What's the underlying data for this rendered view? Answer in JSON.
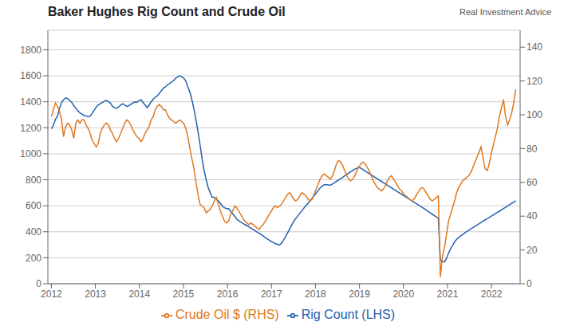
{
  "chart_data": {
    "type": "line",
    "title": "Baker Hughes Rig Count and Crude Oil",
    "annotations": [
      "Real Investment Advice"
    ],
    "grid": true,
    "legend": "bottom",
    "xlim": [
      2011.92,
      2022.65
    ],
    "xticks": [
      2012,
      2013,
      2014,
      2015,
      2016,
      2017,
      2018,
      2019,
      2020,
      2021,
      2022
    ],
    "ylim": [
      0,
      1950
    ],
    "yticks": [
      0,
      200,
      400,
      600,
      800,
      1000,
      1200,
      1400,
      1600,
      1800
    ],
    "y2lim": [
      0,
      150
    ],
    "y2ticks": [
      0,
      20,
      40,
      60,
      80,
      100,
      120,
      140
    ],
    "x": [
      2012,
      2012.0463,
      2012.0925,
      2012.1388,
      2012.1851,
      2012.2314,
      2012.2776,
      2012.3239,
      2012.3702,
      2012.4164,
      2012.4627,
      2012.509,
      2012.5553,
      2012.6015,
      2012.6478,
      2012.6941,
      2012.7404,
      2012.7866,
      2012.8329,
      2012.8792,
      2012.9254,
      2012.9717,
      2013.018,
      2013.0643,
      2013.1105,
      2013.1568,
      2013.2031,
      2013.2493,
      2013.2956,
      2013.3419,
      2013.3882,
      2013.4344,
      2013.4807,
      2013.527,
      2013.5732,
      2013.6195,
      2013.6658,
      2013.7121,
      2013.7583,
      2013.8046,
      2013.8509,
      2013.8971,
      2013.9434,
      2013.9897,
      2014.036,
      2014.0822,
      2014.1285,
      2014.1748,
      2014.2211,
      2014.2673,
      2014.3136,
      2014.3599,
      2014.4061,
      2014.4524,
      2014.4987,
      2014.545,
      2014.5912,
      2014.6375,
      2014.6838,
      2014.73,
      2014.7763,
      2014.8226,
      2014.8689,
      2014.9151,
      2014.9614,
      2015.0077,
      2015.0539,
      2015.1002,
      2015.1465,
      2015.1928,
      2015.239,
      2015.2853,
      2015.3316,
      2015.3779,
      2015.4241,
      2015.4704,
      2015.5167,
      2015.5629,
      2015.6092,
      2015.6555,
      2015.7018,
      2015.748,
      2015.7943,
      2015.8406,
      2015.8868,
      2015.9331,
      2015.9794,
      2016.0257,
      2016.0719,
      2016.1182,
      2016.1645,
      2016.2107,
      2016.257,
      2016.3033,
      2016.3496,
      2016.3958,
      2016.4421,
      2016.4884,
      2016.5346,
      2016.5809,
      2016.6272,
      2016.6735,
      2016.7197,
      2016.766,
      2016.8123,
      2016.8586,
      2016.9048,
      2016.9511,
      2016.9974,
      2017.0436,
      2017.0899,
      2017.1362,
      2017.1825,
      2017.2287,
      2017.275,
      2017.3213,
      2017.3675,
      2017.4138,
      2017.4601,
      2017.5064,
      2017.5526,
      2017.5989,
      2017.6452,
      2017.6914,
      2017.7377,
      2017.784,
      2017.8303,
      2017.8765,
      2017.9228,
      2017.9691,
      2018.0154,
      2018.0616,
      2018.1079,
      2018.1542,
      2018.2004,
      2018.2467,
      2018.293,
      2018.3393,
      2018.3855,
      2018.4318,
      2018.4781,
      2018.5243,
      2018.5706,
      2018.6169,
      2018.6632,
      2018.7094,
      2018.7557,
      2018.802,
      2018.8482,
      2018.8945,
      2018.9408,
      2018.9871,
      2019.0333,
      2019.0796,
      2019.1259,
      2019.1721,
      2019.2184,
      2019.2647,
      2019.311,
      2019.3572,
      2019.4035,
      2019.4498,
      2019.4961,
      2019.5423,
      2019.5886,
      2019.6349,
      2019.6811,
      2019.7274,
      2019.7737,
      2019.82,
      2019.8662,
      2019.9125,
      2019.9588,
      2020.005,
      2020.0513,
      2020.0976,
      2020.1439,
      2020.1901,
      2020.2364,
      2020.2827,
      2020.3289,
      2020.3752,
      2020.4215,
      2020.4678,
      2020.514,
      2020.5603,
      2020.6066,
      2020.6529,
      2020.6991,
      2020.7454,
      2020.7917,
      2020.8379,
      2020.8842,
      2020.9305,
      2020.9768,
      2021.023,
      2021.0693,
      2021.1156,
      2021.1618,
      2021.2081,
      2021.2544,
      2021.3007,
      2021.3469,
      2021.3932,
      2021.4395,
      2021.4857,
      2021.532,
      2021.5783,
      2021.6246,
      2021.6708,
      2021.7171,
      2021.7634,
      2021.8096,
      2021.8559,
      2021.9022,
      2021.9485,
      2021.9947,
      2022.041,
      2022.0873,
      2022.1336,
      2022.1798,
      2022.2261,
      2022.2724,
      2022.3186,
      2022.3649,
      2022.4112,
      2022.4575,
      2022.5037,
      2022.55
    ],
    "series": [
      {
        "name": "Rig Count (LHS)",
        "color": "#2060b0",
        "values": [
          1192,
          1220,
          1265,
          1290,
          1350,
          1395,
          1415,
          1430,
          1425,
          1410,
          1395,
          1370,
          1350,
          1330,
          1315,
          1305,
          1295,
          1290,
          1285,
          1290,
          1310,
          1335,
          1360,
          1375,
          1385,
          1395,
          1405,
          1410,
          1400,
          1390,
          1365,
          1355,
          1350,
          1360,
          1375,
          1385,
          1375,
          1365,
          1370,
          1380,
          1390,
          1400,
          1395,
          1410,
          1415,
          1395,
          1375,
          1355,
          1375,
          1400,
          1420,
          1435,
          1445,
          1465,
          1485,
          1505,
          1515,
          1530,
          1540,
          1552,
          1562,
          1582,
          1590,
          1600,
          1592,
          1582,
          1560,
          1515,
          1475,
          1415,
          1345,
          1260,
          1170,
          1070,
          960,
          870,
          800,
          740,
          700,
          665,
          665,
          650,
          638,
          618,
          598,
          585,
          578,
          578,
          558,
          538,
          520,
          498,
          485,
          475,
          465,
          455,
          448,
          438,
          428,
          418,
          408,
          398,
          388,
          378,
          368,
          355,
          345,
          335,
          325,
          318,
          308,
          303,
          300,
          312,
          335,
          362,
          392,
          422,
          452,
          480,
          502,
          522,
          542,
          562,
          582,
          602,
          618,
          638,
          658,
          678,
          698,
          718,
          738,
          752,
          762,
          762,
          760,
          758,
          768,
          778,
          788,
          798,
          808,
          818,
          830,
          842,
          852,
          862,
          872,
          882,
          888,
          898,
          888,
          878,
          868,
          858,
          848,
          838,
          828,
          818,
          808,
          798,
          788,
          778,
          768,
          758,
          748,
          738,
          728,
          718,
          708,
          698,
          688,
          678,
          668,
          658,
          648,
          638,
          628,
          618,
          608,
          598,
          588,
          578,
          568,
          555,
          545,
          535,
          525,
          515,
          505,
          180,
          172,
          168,
          195,
          235,
          268,
          295,
          322,
          342,
          355,
          368,
          380,
          392,
          402,
          412,
          422,
          432,
          442,
          452,
          462,
          472,
          482,
          492,
          500,
          510,
          520,
          530,
          540,
          550,
          558,
          568,
          578,
          588,
          598,
          608,
          618,
          628,
          638
        ]
      },
      {
        "name": "Crude Oil $ (RHS)",
        "color": "#e07820",
        "axis": "y2",
        "values": [
          99,
          103,
          107,
          105,
          102,
          97,
          87,
          93,
          95,
          94,
          91,
          86,
          95,
          97,
          95,
          97,
          97,
          94,
          92,
          89,
          85,
          83,
          81,
          83,
          89,
          92,
          94,
          95,
          94,
          91,
          89,
          86,
          84,
          86,
          89,
          92,
          95,
          97,
          96,
          94,
          91,
          89,
          87,
          86,
          84,
          86,
          89,
          91,
          93,
          97,
          99,
          103,
          105,
          106,
          105,
          103,
          103,
          100,
          98,
          97,
          96,
          95,
          96,
          97,
          96,
          95,
          92,
          87,
          80,
          74,
          68,
          60,
          53,
          47,
          46,
          45,
          42,
          43,
          44,
          46,
          49,
          51,
          47,
          43,
          40,
          37,
          36,
          37,
          41,
          43,
          46,
          45,
          43,
          41,
          39,
          37,
          36,
          35,
          36,
          35,
          34,
          33,
          32,
          34,
          35,
          37,
          39,
          41,
          43,
          45,
          46,
          45,
          46,
          47,
          49,
          51,
          53,
          54,
          52,
          50,
          49,
          50,
          52,
          54,
          53,
          52,
          50,
          49,
          50,
          53,
          56,
          59,
          62,
          64,
          65,
          64,
          63,
          62,
          64,
          67,
          71,
          73,
          72,
          70,
          67,
          64,
          62,
          61,
          62,
          64,
          67,
          69,
          71,
          72,
          71,
          69,
          67,
          64,
          61,
          59,
          57,
          56,
          55,
          56,
          58,
          61,
          63,
          64,
          62,
          60,
          58,
          56,
          55,
          53,
          52,
          51,
          50,
          49,
          50,
          52,
          54,
          56,
          57,
          56,
          54,
          52,
          50,
          49,
          50,
          51,
          52,
          4,
          16,
          21,
          29,
          37,
          41,
          45,
          49,
          54,
          57,
          59,
          61,
          62,
          63,
          64,
          66,
          69,
          72,
          75,
          78,
          81,
          74,
          68,
          67,
          71,
          77,
          82,
          87,
          92,
          99,
          104,
          109,
          99,
          94,
          97,
          101,
          107,
          115
        ]
      }
    ]
  }
}
